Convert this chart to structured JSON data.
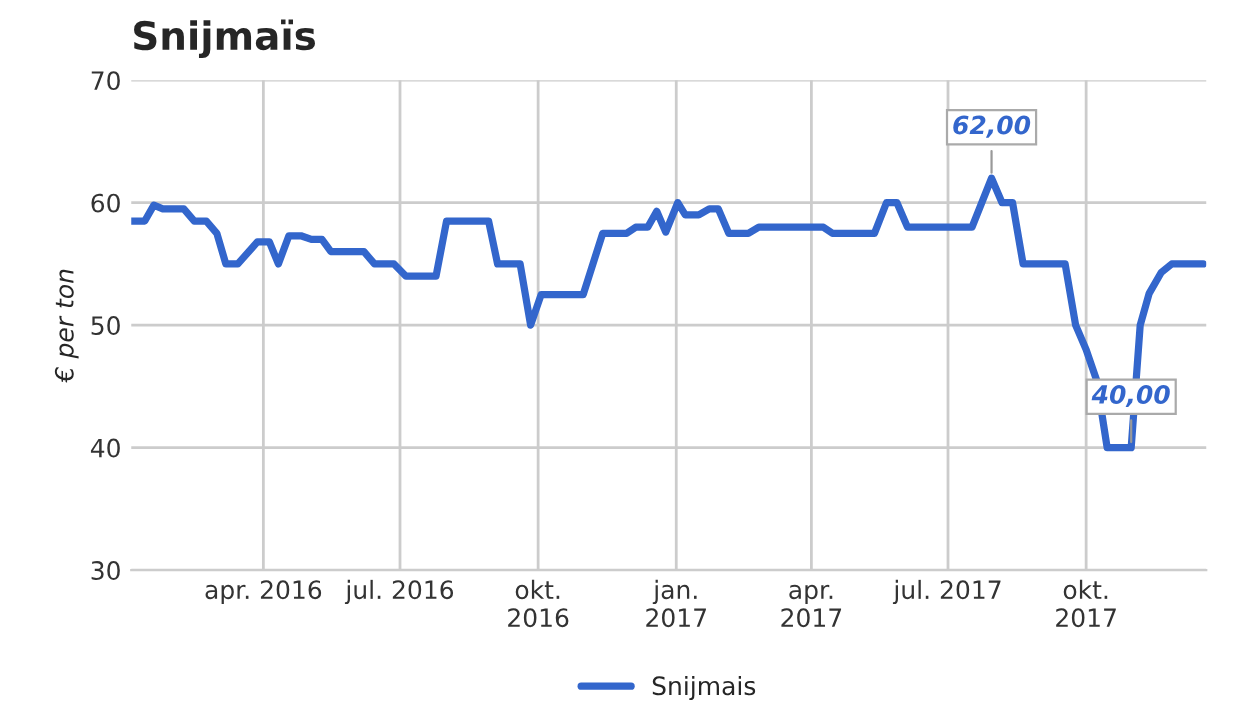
{
  "chart_data": {
    "type": "line",
    "title": "Snijmaïs",
    "ylabel": "€ per ton",
    "x": [
      "2016-01-04",
      "2016-01-13",
      "2016-01-19",
      "2016-01-25",
      "2016-02-08",
      "2016-02-15",
      "2016-02-23",
      "2016-03-01",
      "2016-03-07",
      "2016-03-15",
      "2016-03-28",
      "2016-04-05",
      "2016-04-11",
      "2016-04-18",
      "2016-04-26",
      "2016-05-03",
      "2016-05-10",
      "2016-05-16",
      "2016-06-07",
      "2016-06-14",
      "2016-06-27",
      "2016-07-05",
      "2016-07-25",
      "2016-08-01",
      "2016-08-29",
      "2016-09-04",
      "2016-09-19",
      "2016-09-26",
      "2016-10-03",
      "2016-10-31",
      "2016-11-13",
      "2016-11-29",
      "2016-12-05",
      "2016-12-13",
      "2016-12-19",
      "2016-12-25",
      "2017-01-02",
      "2017-01-07",
      "2017-01-16",
      "2017-01-23",
      "2017-01-29",
      "2017-02-05",
      "2017-02-18",
      "2017-02-25",
      "2017-04-09",
      "2017-04-15",
      "2017-05-13",
      "2017-05-21",
      "2017-05-28",
      "2017-06-04",
      "2017-07-17",
      "2017-07-30",
      "2017-08-06",
      "2017-08-13",
      "2017-08-20",
      "2017-09-17",
      "2017-09-24",
      "2017-10-01",
      "2017-10-08",
      "2017-10-15",
      "2017-10-31",
      "2017-11-06",
      "2017-11-12",
      "2017-11-20",
      "2017-11-27",
      "2017-12-18"
    ],
    "series": [
      {
        "name": "Snijmais",
        "color": "#3366cc",
        "values": [
          58.5,
          58.5,
          59.8,
          59.5,
          59.5,
          58.5,
          58.5,
          57.5,
          55,
          55,
          56.8,
          56.8,
          55,
          57.3,
          57.3,
          57,
          57,
          56,
          56,
          55,
          55,
          54,
          54,
          58.5,
          58.5,
          55,
          55,
          50,
          52.5,
          52.5,
          57.5,
          57.5,
          58,
          58,
          59.3,
          57.6,
          60,
          59,
          59,
          59.5,
          59.5,
          57.5,
          57.5,
          58,
          58,
          57.5,
          57.5,
          60,
          60,
          58,
          58,
          62,
          60,
          60,
          55,
          55,
          50,
          48,
          45.5,
          40,
          40,
          50,
          52.6,
          54.3,
          55,
          55
        ]
      }
    ],
    "annotations": [
      {
        "text": "62,00",
        "x": "2017-07-30",
        "y": 62
      },
      {
        "text": "40,00",
        "x": "2017-10-31",
        "y": 40
      }
    ],
    "xlim": [
      "2016-01-04",
      "2017-12-20"
    ],
    "xticks": [
      {
        "value": "2016-04-01",
        "label": "apr. 2016"
      },
      {
        "value": "2016-07-01",
        "label": "jul. 2016"
      },
      {
        "value": "2016-10-01",
        "label": "okt.\n2016"
      },
      {
        "value": "2017-01-01",
        "label": "jan.\n2017"
      },
      {
        "value": "2017-04-01",
        "label": "apr.\n2017"
      },
      {
        "value": "2017-07-01",
        "label": "jul. 2017"
      },
      {
        "value": "2017-10-01",
        "label": "okt.\n2017"
      }
    ],
    "ylim": [
      30,
      70
    ],
    "yticks": [
      30,
      40,
      50,
      60,
      70
    ],
    "grid": true,
    "legend": "bottom",
    "marker": "none",
    "line_style": "solid"
  }
}
